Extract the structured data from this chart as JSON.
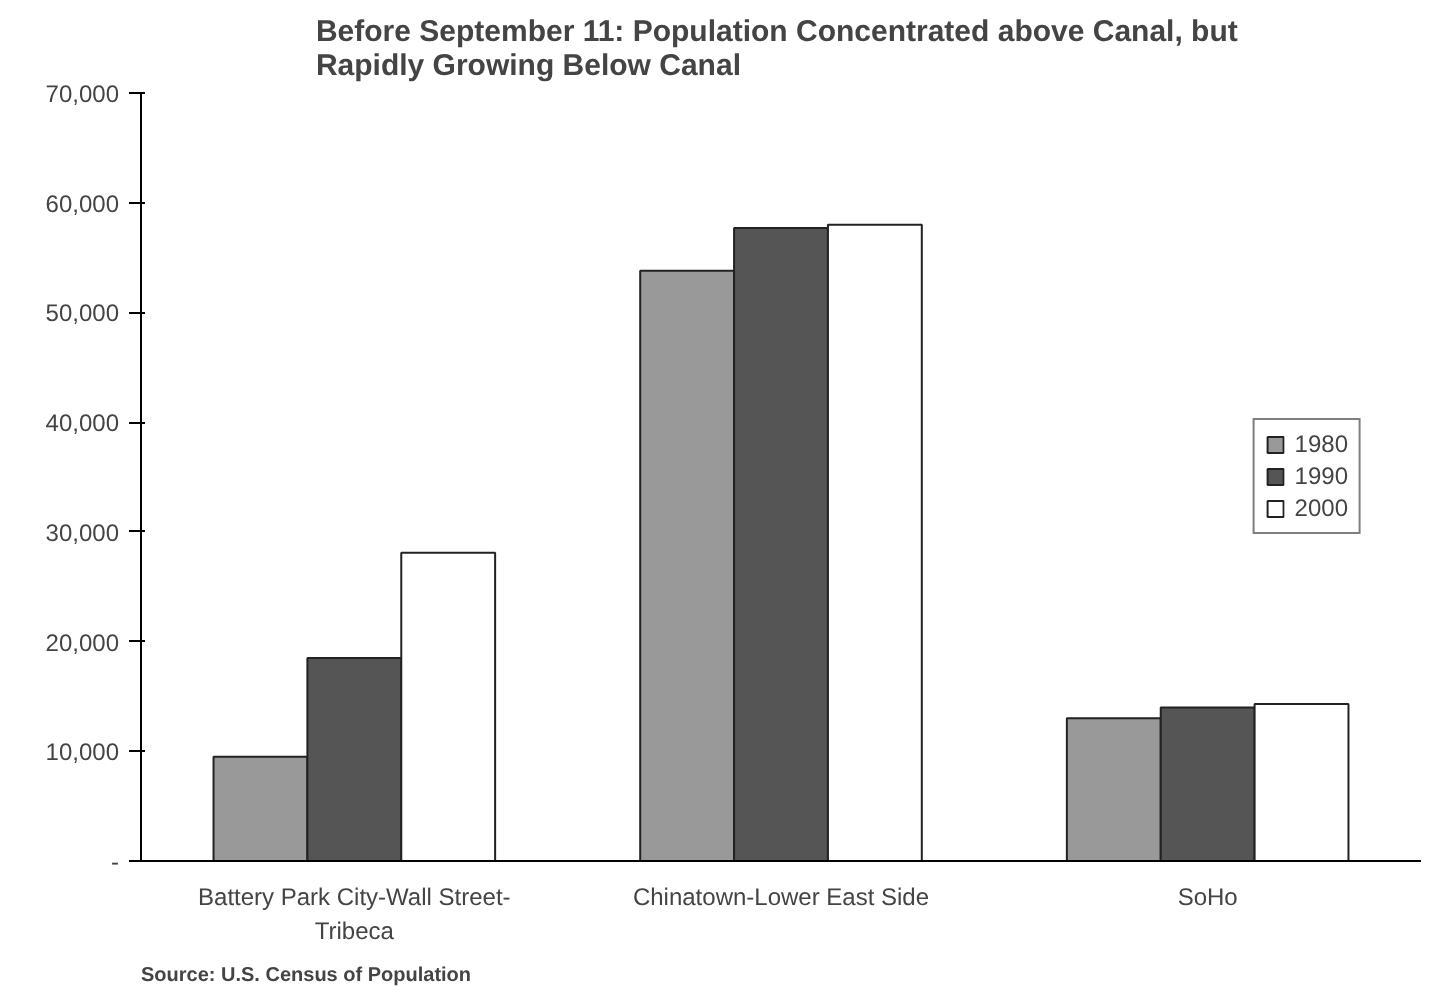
{
  "chart_data": {
    "type": "bar",
    "title": "Before September 11:  Population Concentrated above Canal, but\nRapidly Growing Below Canal",
    "categories": [
      "Battery Park City-Wall Street-\nTribeca",
      "Chinatown-Lower East Side",
      "SoHo"
    ],
    "series": [
      {
        "name": "1980",
        "color": "#999999",
        "values": [
          9500,
          53800,
          13000
        ]
      },
      {
        "name": "1990",
        "color": "#555555",
        "values": [
          18500,
          57700,
          14000
        ]
      },
      {
        "name": "2000",
        "color": "#ffffff",
        "values": [
          28100,
          58000,
          14300
        ]
      }
    ],
    "ylim": [
      0,
      70000
    ],
    "yticks": [
      {
        "value": 0,
        "label": "-"
      },
      {
        "value": 10000,
        "label": "10,000"
      },
      {
        "value": 20000,
        "label": "20,000"
      },
      {
        "value": 30000,
        "label": "30,000"
      },
      {
        "value": 40000,
        "label": "40,000"
      },
      {
        "value": 50000,
        "label": "50,000"
      },
      {
        "value": 60000,
        "label": "60,000"
      },
      {
        "value": 70000,
        "label": "70,000"
      }
    ],
    "legend": "right",
    "grid": false,
    "annotations": [
      "Source:  U.S. Census of Population"
    ]
  }
}
